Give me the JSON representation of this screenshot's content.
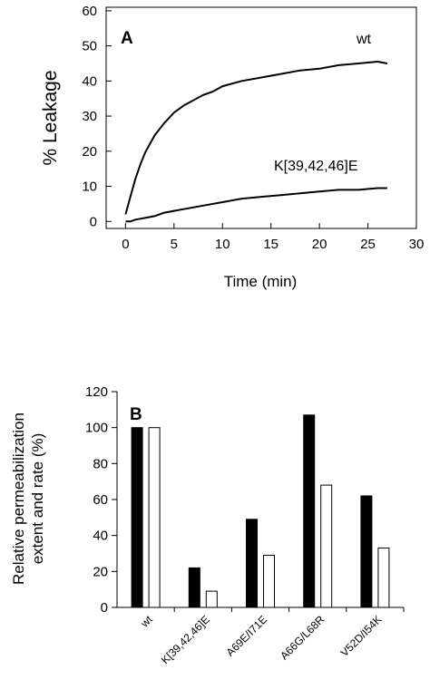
{
  "chart_data": [
    {
      "type": "line",
      "panel": "A",
      "xlabel": "Time (min)",
      "ylabel": "% Leakage",
      "xlim": [
        -2,
        30
      ],
      "ylim": [
        -2,
        61
      ],
      "xticks": [
        "0",
        "5",
        "10",
        "15",
        "20",
        "25",
        "30"
      ],
      "yticks": [
        "0",
        "10",
        "20",
        "30",
        "40",
        "50",
        "60"
      ],
      "grid": false,
      "series": [
        {
          "name": "wt",
          "x": [
            0,
            0.5,
            1,
            1.5,
            2,
            2.5,
            3,
            4,
            5,
            6,
            7,
            8,
            9,
            10,
            12,
            14,
            16,
            18,
            20,
            22,
            24,
            26,
            27
          ],
          "y": [
            2,
            7,
            12,
            16,
            19.5,
            22,
            24.5,
            28,
            31,
            33,
            34.5,
            36,
            37,
            38.5,
            40,
            41,
            42,
            43,
            43.5,
            44.5,
            45,
            45.5,
            45
          ]
        },
        {
          "name": "K[39,42,46]E",
          "x": [
            0,
            0.5,
            1,
            2,
            3,
            4,
            5,
            6,
            8,
            10,
            12,
            14,
            16,
            18,
            20,
            22,
            24,
            26,
            27
          ],
          "y": [
            0,
            0,
            0.5,
            1,
            1.5,
            2.5,
            3,
            3.5,
            4.5,
            5.5,
            6.5,
            7,
            7.5,
            8,
            8.5,
            9,
            9,
            9.5,
            9.5
          ]
        }
      ]
    },
    {
      "type": "bar",
      "panel": "B",
      "ylabel": "Relative permeabilization extent and rate (%)",
      "ylabel_lines": [
        "Relative permeabilization",
        "extent and rate (%)"
      ],
      "ylim": [
        0,
        120
      ],
      "yticks": [
        "0",
        "20",
        "40",
        "60",
        "80",
        "100",
        "120"
      ],
      "grid": false,
      "categories": [
        "wt",
        "K[39,42,46]E",
        "A69E/I71E",
        "A66G/L68R",
        "V52D/I54K"
      ],
      "series": [
        {
          "fill": "#000000",
          "values": [
            100,
            22,
            49,
            107,
            62
          ]
        },
        {
          "fill": "#ffffff",
          "values": [
            100,
            9,
            29,
            68,
            33
          ]
        }
      ]
    }
  ]
}
